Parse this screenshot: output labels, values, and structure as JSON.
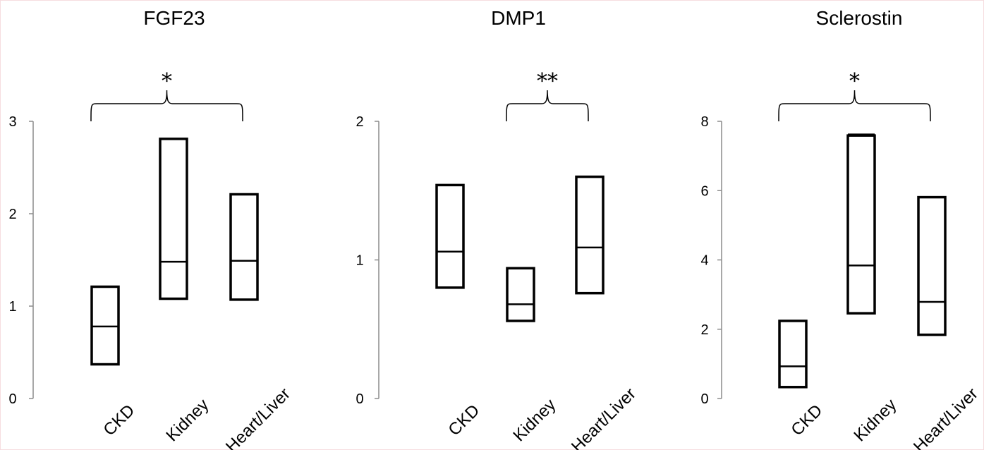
{
  "chart_data": [
    {
      "type": "box",
      "title": "FGF23",
      "categories": [
        "CKD",
        "Kidney",
        "Heart/Liver"
      ],
      "boxes": [
        {
          "category": "CKD",
          "q1": 0.37,
          "median": 0.78,
          "q3": 1.21
        },
        {
          "category": "Kidney",
          "q1": 1.08,
          "median": 1.48,
          "q3": 2.81
        },
        {
          "category": "Heart/Liver",
          "q1": 1.07,
          "median": 1.49,
          "q3": 2.21
        }
      ],
      "yticks": [
        "0",
        "1",
        "2",
        "3"
      ],
      "ylim": [
        0,
        3
      ],
      "significance": {
        "label": "*",
        "from": "CKD",
        "to": "Heart/Liver"
      }
    },
    {
      "type": "box",
      "title": "DMP1",
      "categories": [
        "CKD",
        "Kidney",
        "Heart/Liver"
      ],
      "boxes": [
        {
          "category": "CKD",
          "q1": 0.8,
          "median": 1.06,
          "q3": 1.54
        },
        {
          "category": "Kidney",
          "q1": 0.56,
          "median": 0.68,
          "q3": 0.94
        },
        {
          "category": "Heart/Liver",
          "q1": 0.76,
          "median": 1.09,
          "q3": 1.6
        }
      ],
      "yticks": [
        "0",
        "1",
        "2"
      ],
      "ylim": [
        0,
        2
      ],
      "significance": {
        "label": "**",
        "from": "Kidney",
        "to": "Heart/Liver"
      }
    },
    {
      "type": "box",
      "title": "Sclerostin",
      "categories": [
        "CKD",
        "Kidney",
        "Heart/Liver"
      ],
      "boxes": [
        {
          "category": "CKD",
          "q1": 0.33,
          "median": 0.93,
          "q3": 2.24
        },
        {
          "category": "Kidney",
          "q1": 2.46,
          "median": 3.84,
          "q3": 7.59,
          "whisker_high": 7.62
        },
        {
          "category": "Heart/Liver",
          "q1": 1.84,
          "median": 2.79,
          "q3": 5.81
        }
      ],
      "yticks": [
        "0",
        "2",
        "4",
        "6",
        "8"
      ],
      "ylim": [
        0,
        8
      ],
      "significance": {
        "label": "*",
        "from": "CKD",
        "to": "Heart/Liver"
      }
    }
  ]
}
